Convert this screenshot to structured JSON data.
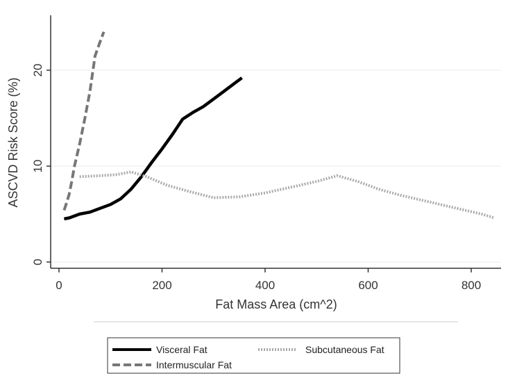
{
  "chart_data": {
    "type": "line",
    "xlabel": "Fat Mass Area (cm^2)",
    "ylabel": "ASCVD Risk Score (%)",
    "xlim": [
      -5,
      850
    ],
    "ylim": [
      -1,
      26
    ],
    "xticks": [
      0,
      200,
      400,
      600,
      800
    ],
    "yticks": [
      0,
      10,
      20
    ],
    "xtick_labels": [
      "0",
      "200",
      "400",
      "600",
      "800"
    ],
    "ytick_labels": [
      "0",
      "10",
      "20"
    ],
    "grid": "horizontal",
    "legend_position": "bottom",
    "series": [
      {
        "name": "Visceral Fat",
        "style": "solid",
        "color": "#000000",
        "x": [
          10,
          20,
          40,
          60,
          80,
          100,
          120,
          140,
          160,
          180,
          200,
          220,
          240,
          260,
          280,
          300,
          320,
          340,
          355
        ],
        "y": [
          4.5,
          4.6,
          5.0,
          5.2,
          5.6,
          6.0,
          6.6,
          7.6,
          8.9,
          10.4,
          11.8,
          13.3,
          14.9,
          15.6,
          16.2,
          17.0,
          17.8,
          18.6,
          19.2
        ]
      },
      {
        "name": "Subcutaneous Fat",
        "style": "dotted",
        "color": "#aaaaaa",
        "x": [
          40,
          80,
          110,
          140,
          170,
          210,
          250,
          300,
          350,
          400,
          450,
          500,
          540,
          580,
          620,
          660,
          700,
          740,
          780,
          820,
          845
        ],
        "y": [
          8.9,
          9.0,
          9.1,
          9.4,
          8.9,
          8.0,
          7.4,
          6.7,
          6.8,
          7.2,
          7.8,
          8.4,
          9.0,
          8.4,
          7.6,
          7.0,
          6.5,
          6.0,
          5.5,
          5.0,
          4.6
        ]
      },
      {
        "name": "Intermuscular Fat",
        "style": "dashed",
        "color": "#777777",
        "x": [
          10,
          15,
          20,
          25,
          30,
          40,
          50,
          60,
          70,
          80,
          87
        ],
        "y": [
          5.4,
          6.2,
          7.1,
          8.5,
          10.0,
          12.3,
          14.9,
          17.8,
          21.5,
          23.0,
          24.0
        ]
      }
    ]
  }
}
